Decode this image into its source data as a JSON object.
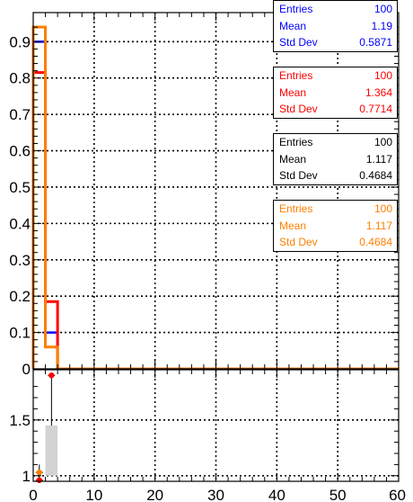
{
  "colors": {
    "blue": "#0000ff",
    "red": "#ff0000",
    "black": "#000000",
    "orange": "#ff7f00",
    "band": "#d3d3d3"
  },
  "chart_data": [
    {
      "type": "histogram",
      "xlim": [
        0,
        60
      ],
      "ylim": [
        0,
        0.98
      ],
      "grid": true,
      "x_ticks": [
        "0",
        "10",
        "20",
        "30",
        "40",
        "50",
        "60"
      ],
      "y_ticks": [
        "0",
        "0.1",
        "0.2",
        "0.3",
        "0.4",
        "0.5",
        "0.6",
        "0.7",
        "0.8",
        "0.9"
      ],
      "series": [
        {
          "color": "blue",
          "bins": [
            [
              0,
              2,
              0.9
            ],
            [
              2,
              4,
              0.1
            ]
          ]
        },
        {
          "color": "red",
          "bins": [
            [
              0,
              2,
              0.815
            ],
            [
              2,
              4,
              0.185
            ]
          ]
        },
        {
          "color": "black",
          "bins": [
            [
              0,
              2,
              0.94
            ],
            [
              2,
              4,
              0.06
            ]
          ]
        },
        {
          "color": "orange",
          "bins": [
            [
              0,
              2,
              0.94
            ],
            [
              2,
              4,
              0.06
            ]
          ]
        }
      ],
      "stats_boxes": [
        {
          "color": "blue",
          "rows": [
            [
              "Entries",
              "100"
            ],
            [
              "Mean",
              "1.19"
            ],
            [
              "Std Dev",
              "0.5871"
            ]
          ]
        },
        {
          "color": "red",
          "rows": [
            [
              "Entries",
              "100"
            ],
            [
              "Mean",
              "1.364"
            ],
            [
              "Std Dev",
              "0.7714"
            ]
          ]
        },
        {
          "color": "black",
          "rows": [
            [
              "Entries",
              "100"
            ],
            [
              "Mean",
              "1.117"
            ],
            [
              "Std Dev",
              "0.4684"
            ]
          ]
        },
        {
          "color": "orange",
          "rows": [
            [
              "Entries",
              "100"
            ],
            [
              "Mean",
              "1.117"
            ],
            [
              "Std Dev",
              "0.4684"
            ]
          ]
        }
      ]
    },
    {
      "type": "ratio",
      "xlim": [
        0,
        60
      ],
      "ylim": [
        0.95,
        1.95
      ],
      "grid": true,
      "y_ticks": [
        "1",
        "1.5"
      ],
      "band": {
        "x": [
          2,
          4
        ],
        "y": [
          1,
          1.45
        ]
      },
      "points": [
        {
          "color": "red",
          "x": 3,
          "y": 1.9,
          "err": [
            1.45,
            1.9
          ]
        },
        {
          "color": "orange",
          "x": 1,
          "y": 1.03,
          "err": [
            0.97,
            1.1
          ]
        },
        {
          "color": "red",
          "x": 1,
          "y": 0.96
        }
      ]
    }
  ]
}
